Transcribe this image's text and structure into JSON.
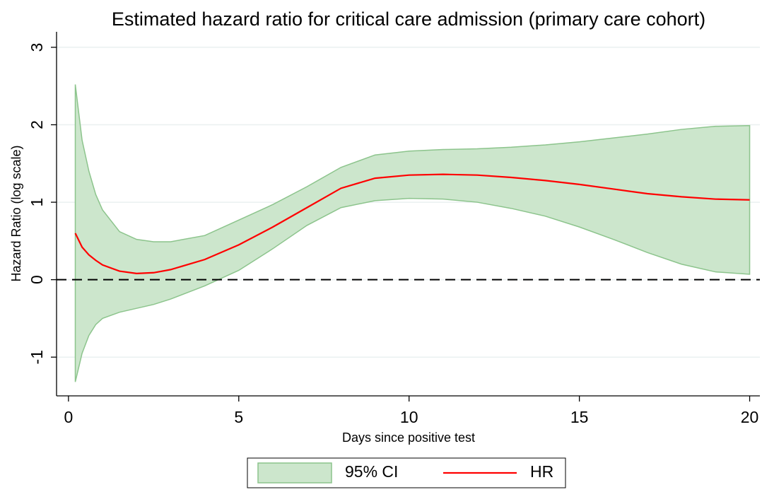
{
  "chart_data": {
    "type": "line",
    "title": "Estimated hazard ratio for critical care admission (primary care cohort)",
    "xlabel": "Days since positive test",
    "ylabel": "Hazard Ratio (log scale)",
    "x": [
      0.2,
      0.4,
      0.6,
      0.8,
      1,
      1.5,
      2,
      2.5,
      3,
      4,
      5,
      6,
      7,
      8,
      9,
      10,
      11,
      12,
      13,
      14,
      15,
      16,
      17,
      18,
      19,
      20
    ],
    "series": [
      {
        "name": "95% CI",
        "kind": "band",
        "color": "#cce6cc",
        "edge_color": "#8cc48c",
        "upper": [
          2.52,
          1.8,
          1.4,
          1.1,
          0.9,
          0.62,
          0.52,
          0.49,
          0.49,
          0.57,
          0.77,
          0.97,
          1.2,
          1.45,
          1.61,
          1.66,
          1.68,
          1.69,
          1.71,
          1.74,
          1.78,
          1.83,
          1.88,
          1.94,
          1.98,
          1.99
        ],
        "lower": [
          -1.32,
          -0.95,
          -0.72,
          -0.58,
          -0.5,
          -0.42,
          -0.37,
          -0.32,
          -0.25,
          -0.08,
          0.12,
          0.4,
          0.7,
          0.93,
          1.02,
          1.05,
          1.04,
          1.0,
          0.92,
          0.82,
          0.68,
          0.52,
          0.35,
          0.2,
          0.1,
          0.07
        ]
      },
      {
        "name": "HR",
        "kind": "line",
        "color": "#ff0000",
        "values": [
          0.6,
          0.42,
          0.32,
          0.25,
          0.19,
          0.11,
          0.08,
          0.09,
          0.13,
          0.26,
          0.45,
          0.68,
          0.93,
          1.18,
          1.31,
          1.35,
          1.36,
          1.35,
          1.32,
          1.28,
          1.23,
          1.17,
          1.11,
          1.07,
          1.04,
          1.03
        ]
      }
    ],
    "reference_line": 0,
    "xlim": [
      -0.35,
      20.3
    ],
    "ylim": [
      -1.5,
      3.2
    ],
    "xticks": [
      0,
      5,
      10,
      15,
      20
    ],
    "yticks": [
      -1,
      0,
      1,
      2,
      3
    ],
    "grid": true
  }
}
